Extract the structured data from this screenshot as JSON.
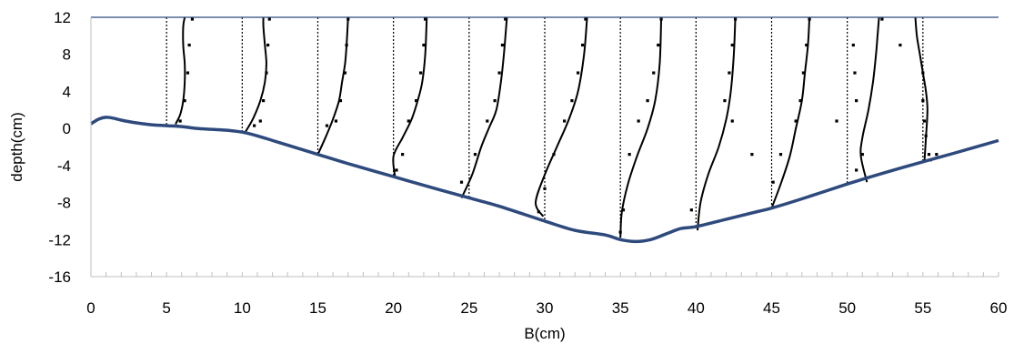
{
  "chart_data": {
    "type": "line",
    "xlabel": "B(cm)",
    "ylabel": "depth(cm)",
    "xlim": [
      0,
      60
    ],
    "ylim": [
      -16,
      12
    ],
    "x_ticks": [
      0,
      5,
      10,
      15,
      20,
      25,
      30,
      35,
      40,
      45,
      50,
      55,
      60
    ],
    "y_ticks": [
      12,
      8,
      4,
      0,
      -4,
      -8,
      -12,
      -16
    ],
    "grid": false,
    "legend": "none",
    "colors": {
      "bed": "#2e4a7d",
      "profile": "#000000",
      "reference": "#000000",
      "points": "#000000"
    },
    "bed_profile": {
      "x": [
        0,
        0.5,
        1,
        1.5,
        2,
        3,
        4,
        5,
        6,
        7,
        8,
        9,
        10,
        11,
        12,
        13,
        14,
        15,
        17,
        20,
        23,
        25,
        27,
        30,
        32,
        34,
        35,
        36,
        37,
        38,
        39,
        40,
        42,
        44,
        45,
        47,
        50,
        52,
        55,
        57,
        60
      ],
      "y": [
        0.5,
        1.0,
        1.2,
        1.1,
        0.9,
        0.6,
        0.4,
        0.3,
        0.2,
        0.0,
        -0.1,
        -0.2,
        -0.4,
        -0.8,
        -1.3,
        -1.8,
        -2.3,
        -2.8,
        -3.8,
        -5.2,
        -6.6,
        -7.5,
        -8.4,
        -10.0,
        -11.0,
        -11.5,
        -12.0,
        -12.2,
        -12.0,
        -11.4,
        -10.8,
        -10.6,
        -9.8,
        -9.0,
        -8.6,
        -7.6,
        -6.0,
        -5.0,
        -3.6,
        -2.7,
        -1.3
      ]
    },
    "stations": [
      5,
      10,
      15,
      20,
      25,
      30,
      35,
      40,
      45,
      50,
      55
    ],
    "velocity_profiles": [
      {
        "station": 5,
        "x": [
          5.6,
          5.9,
          6.1,
          6.2,
          6.2,
          6.1,
          6.1,
          6.2
        ],
        "y": [
          0.5,
          1.5,
          3,
          5,
          7,
          9,
          11,
          12
        ]
      },
      {
        "station": 10,
        "x": [
          10.2,
          10.7,
          11.2,
          11.5,
          11.6,
          11.5,
          11.4,
          11.4
        ],
        "y": [
          -0.4,
          1,
          3,
          5,
          7,
          9,
          11,
          12
        ]
      },
      {
        "station": 15,
        "x": [
          15.0,
          15.5,
          16.0,
          16.4,
          16.6,
          16.8,
          16.9,
          17.0
        ],
        "y": [
          -2.8,
          -1,
          1,
          3,
          5,
          7,
          9,
          12
        ]
      },
      {
        "station": 20,
        "x": [
          20.1,
          20.0,
          20.6,
          21.2,
          21.6,
          21.9,
          22.1,
          22.2
        ],
        "y": [
          -5.2,
          -3,
          -1,
          1,
          3,
          5,
          8,
          12
        ]
      },
      {
        "station": 25,
        "x": [
          24.5,
          25.2,
          25.8,
          26.3,
          26.8,
          27.1,
          27.3,
          27.5
        ],
        "y": [
          -7.5,
          -5,
          -2,
          0,
          2,
          5,
          8,
          12
        ]
      },
      {
        "station": 30,
        "x": [
          29.9,
          29.4,
          30.0,
          30.8,
          31.6,
          32.2,
          32.6,
          32.8
        ],
        "y": [
          -9.5,
          -8,
          -5,
          -2,
          1,
          4,
          8,
          12
        ]
      },
      {
        "station": 35,
        "x": [
          35.0,
          35.1,
          35.5,
          36.1,
          36.8,
          37.3,
          37.6,
          37.7
        ],
        "y": [
          -11.8,
          -9,
          -6,
          -3,
          0,
          3,
          7,
          12
        ]
      },
      {
        "station": 40,
        "x": [
          40.1,
          40.3,
          40.8,
          41.5,
          42.0,
          42.3,
          42.5,
          42.6
        ],
        "y": [
          -11.0,
          -8,
          -5,
          -2,
          1,
          4,
          8,
          12
        ]
      },
      {
        "station": 45,
        "x": [
          45.0,
          45.6,
          46.2,
          46.6,
          47.0,
          47.2,
          47.4,
          47.5
        ],
        "y": [
          -8.6,
          -6,
          -3,
          0,
          3,
          6,
          9,
          12
        ]
      },
      {
        "station": 50,
        "x": [
          51.3,
          50.9,
          51.0,
          51.4,
          51.7,
          51.9,
          52.0,
          52.1
        ],
        "y": [
          -5.8,
          -3,
          -1,
          2,
          5,
          8,
          10,
          12
        ]
      },
      {
        "station": 55,
        "x": [
          55.1,
          55.2,
          55.3,
          55.2,
          55.0,
          54.8,
          54.6,
          54.5
        ],
        "y": [
          -3.6,
          -1,
          2,
          4,
          6,
          8,
          10,
          12
        ]
      }
    ],
    "measured_points": {
      "x": [
        6.7,
        6.5,
        6.4,
        6.2,
        5.9,
        5.6,
        11.8,
        11.7,
        11.6,
        11.4,
        11.2,
        10.8,
        17.0,
        16.9,
        16.8,
        16.5,
        16.2,
        15.6,
        22.1,
        22.0,
        21.8,
        21.5,
        21.0,
        20.6,
        20.2,
        27.4,
        27.2,
        27.0,
        26.7,
        26.2,
        25.4,
        24.5,
        32.7,
        32.5,
        32.2,
        31.8,
        31.3,
        30.6,
        30.0,
        29.6,
        37.7,
        37.5,
        37.2,
        36.8,
        36.2,
        35.6,
        35.2,
        35.0,
        42.6,
        42.4,
        42.2,
        41.9,
        42.4,
        43.7,
        39.7,
        47.5,
        47.3,
        47.1,
        46.9,
        46.6,
        45.6,
        45.1,
        52.3,
        50.4,
        50.5,
        50.6,
        49.3,
        51.0,
        50.6,
        53.5,
        55.0,
        55.0,
        55.1,
        55.2,
        55.4,
        55.5,
        55.9
      ],
      "y": [
        11.8,
        9,
        6,
        3,
        0.8,
        0.3,
        11.8,
        9,
        6,
        3,
        0.8,
        0.3,
        11.8,
        9,
        6,
        3,
        0.8,
        0.3,
        11.8,
        9,
        6,
        3,
        0.8,
        -2.8,
        -4.5,
        11.8,
        9,
        6,
        3,
        0.8,
        -2.8,
        -5.8,
        11.8,
        9,
        6,
        3,
        0.8,
        -2.8,
        -6.5,
        -9.0,
        11.8,
        9,
        6,
        3,
        0.8,
        -2.8,
        -8.8,
        -11.2,
        11.8,
        9,
        6,
        3,
        0.8,
        -2.8,
        -8.8,
        11.8,
        9,
        6,
        3,
        0.8,
        -2.8,
        -5.8,
        11.8,
        9,
        6,
        3,
        0.8,
        -2.8,
        -4.5,
        9.0,
        6,
        3,
        0.8,
        -0.8,
        -2.8,
        -3.4,
        -2.8
      ]
    }
  }
}
